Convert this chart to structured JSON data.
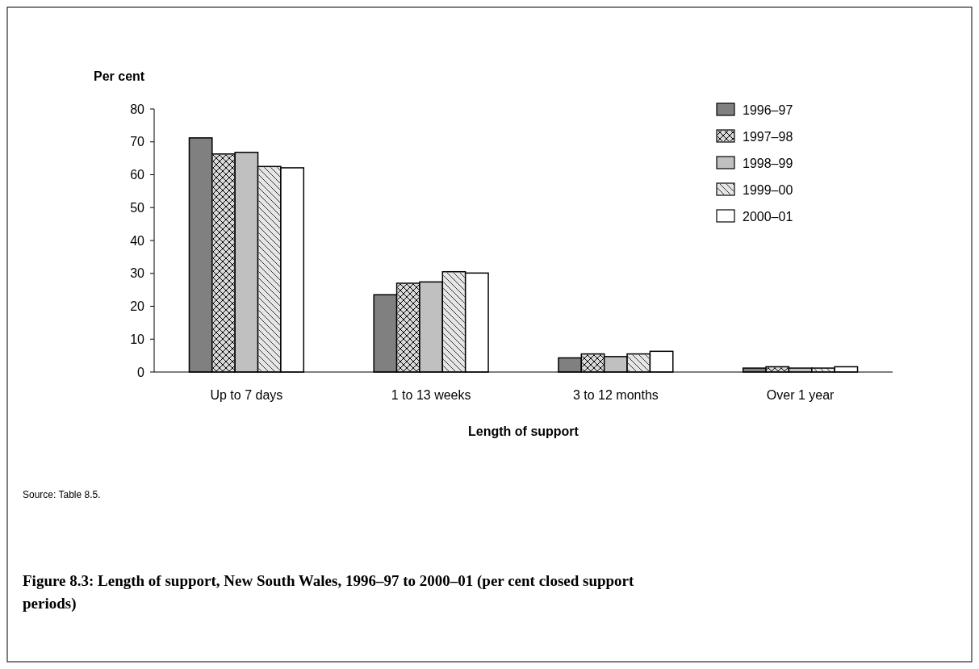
{
  "chart_data": {
    "type": "bar",
    "title": "Figure 8.3: Length of support, New South Wales, 1996–97 to 2000–01 (per cent closed support periods)",
    "xlabel": "Length of support",
    "ylabel": "Per cent",
    "annotations": [
      "Source: Table 8.5."
    ],
    "categories": [
      "Up to 7 days",
      "1 to 13 weeks",
      "3 to 12 months",
      "Over 1 year"
    ],
    "series": [
      {
        "name": "1996–97",
        "color": "#808080",
        "values": [
          71.2,
          23.5,
          4.3,
          1.2
        ]
      },
      {
        "name": "1997–98",
        "color": "#d9d9d9",
        "values": [
          66.3,
          27.0,
          5.5,
          1.6
        ]
      },
      {
        "name": "1998–99",
        "color": "#c0c0c0",
        "values": [
          66.8,
          27.4,
          4.7,
          1.2
        ]
      },
      {
        "name": "1999–00",
        "color": "#e6e6e6",
        "values": [
          62.5,
          30.5,
          5.5,
          1.2
        ]
      },
      {
        "name": "2000–01",
        "color": "#ffffff",
        "values": [
          62.1,
          30.1,
          6.3,
          1.6
        ]
      }
    ],
    "ylim": [
      0,
      80
    ],
    "yticks": [
      0,
      10,
      20,
      30,
      40,
      50,
      60,
      70,
      80
    ],
    "grid": false,
    "legend": "top right"
  }
}
